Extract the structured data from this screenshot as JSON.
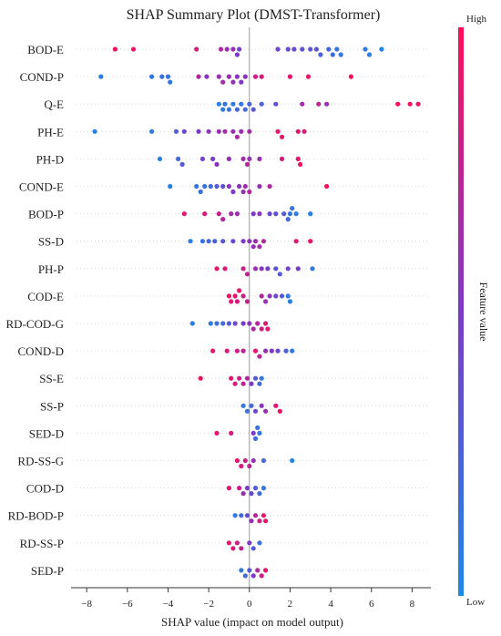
{
  "chart_data": {
    "type": "scatter",
    "title": "SHAP Summary Plot (DMST-Transformer)",
    "xlabel": "SHAP value (impact on model output)",
    "ylabel": "",
    "xlim": [
      -8.5,
      8.7
    ],
    "xticks": [
      -8,
      -6,
      -4,
      -2,
      0,
      2,
      4,
      6,
      8
    ],
    "xtick_labels": [
      "−8",
      "−6",
      "−4",
      "−2",
      "0",
      "2",
      "4",
      "6",
      "8"
    ],
    "grid": true,
    "colorbar": {
      "label": "Feature value",
      "high_label": "High",
      "low_label": "Low",
      "low_color": "#1e88e5",
      "high_color": "#ff0d57"
    },
    "features": [
      {
        "name": "BOD-E",
        "points": [
          {
            "x": -6.6,
            "v": 0.95
          },
          {
            "x": -5.7,
            "v": 0.92
          },
          {
            "x": -2.6,
            "v": 0.82
          },
          {
            "x": -1.4,
            "v": 0.7
          },
          {
            "x": -1.1,
            "v": 0.62
          },
          {
            "x": -0.8,
            "v": 0.6
          },
          {
            "x": -0.6,
            "v": 0.5
          },
          {
            "x": -0.5,
            "v": 0.45
          },
          {
            "x": 1.4,
            "v": 0.42
          },
          {
            "x": 1.9,
            "v": 0.38
          },
          {
            "x": 2.2,
            "v": 0.4
          },
          {
            "x": 2.6,
            "v": 0.35
          },
          {
            "x": 3.0,
            "v": 0.32
          },
          {
            "x": 3.3,
            "v": 0.3
          },
          {
            "x": 3.5,
            "v": 0.25
          },
          {
            "x": 3.9,
            "v": 0.2
          },
          {
            "x": 4.1,
            "v": 0.15
          },
          {
            "x": 4.3,
            "v": 0.12
          },
          {
            "x": 4.5,
            "v": 0.1
          },
          {
            "x": 5.7,
            "v": 0.08
          },
          {
            "x": 5.9,
            "v": 0.05
          },
          {
            "x": 6.5,
            "v": 0.04
          }
        ]
      },
      {
        "name": "COND-P",
        "points": [
          {
            "x": -7.3,
            "v": 0.05
          },
          {
            "x": -4.8,
            "v": 0.1
          },
          {
            "x": -4.3,
            "v": 0.15
          },
          {
            "x": -4.0,
            "v": 0.12
          },
          {
            "x": -3.9,
            "v": 0.1
          },
          {
            "x": -2.5,
            "v": 0.7
          },
          {
            "x": -2.1,
            "v": 0.55
          },
          {
            "x": -1.5,
            "v": 0.6
          },
          {
            "x": -1.3,
            "v": 0.65
          },
          {
            "x": -1.0,
            "v": 0.62
          },
          {
            "x": -0.8,
            "v": 0.6
          },
          {
            "x": -0.6,
            "v": 0.55
          },
          {
            "x": -0.4,
            "v": 0.5
          },
          {
            "x": -0.2,
            "v": 0.55
          },
          {
            "x": 0.3,
            "v": 0.8
          },
          {
            "x": 0.6,
            "v": 0.85
          },
          {
            "x": 2.0,
            "v": 0.9
          },
          {
            "x": 2.9,
            "v": 0.92
          },
          {
            "x": 5.0,
            "v": 0.97
          }
        ]
      },
      {
        "name": "Q-E",
        "points": [
          {
            "x": -1.5,
            "v": 0.05
          },
          {
            "x": -1.3,
            "v": 0.1
          },
          {
            "x": -1.2,
            "v": 0.12
          },
          {
            "x": -1.0,
            "v": 0.15
          },
          {
            "x": -0.8,
            "v": 0.1
          },
          {
            "x": -0.6,
            "v": 0.2
          },
          {
            "x": -0.4,
            "v": 0.15
          },
          {
            "x": -0.2,
            "v": 0.2
          },
          {
            "x": 0.0,
            "v": 0.25
          },
          {
            "x": 0.2,
            "v": 0.3
          },
          {
            "x": 0.6,
            "v": 0.25
          },
          {
            "x": 1.3,
            "v": 0.35
          },
          {
            "x": 2.6,
            "v": 0.65
          },
          {
            "x": 3.4,
            "v": 0.75
          },
          {
            "x": 3.8,
            "v": 0.6
          },
          {
            "x": 7.3,
            "v": 0.97
          },
          {
            "x": 7.9,
            "v": 0.96
          },
          {
            "x": 8.3,
            "v": 0.95
          }
        ]
      },
      {
        "name": "PH-E",
        "points": [
          {
            "x": -7.6,
            "v": 0.05
          },
          {
            "x": -4.8,
            "v": 0.1
          },
          {
            "x": -3.6,
            "v": 0.3
          },
          {
            "x": -3.2,
            "v": 0.4
          },
          {
            "x": -2.5,
            "v": 0.5
          },
          {
            "x": -2.0,
            "v": 0.55
          },
          {
            "x": -1.5,
            "v": 0.6
          },
          {
            "x": -1.2,
            "v": 0.65
          },
          {
            "x": -0.8,
            "v": 0.6
          },
          {
            "x": -0.6,
            "v": 0.7
          },
          {
            "x": -0.4,
            "v": 0.6
          },
          {
            "x": 0.0,
            "v": 0.65
          },
          {
            "x": 1.4,
            "v": 0.9
          },
          {
            "x": 1.6,
            "v": 0.92
          },
          {
            "x": 2.4,
            "v": 0.9
          },
          {
            "x": 2.7,
            "v": 0.85
          }
        ]
      },
      {
        "name": "PH-D",
        "points": [
          {
            "x": -4.4,
            "v": 0.05
          },
          {
            "x": -3.5,
            "v": 0.2
          },
          {
            "x": -3.3,
            "v": 0.3
          },
          {
            "x": -2.3,
            "v": 0.45
          },
          {
            "x": -1.8,
            "v": 0.5
          },
          {
            "x": -1.6,
            "v": 0.55
          },
          {
            "x": -1.0,
            "v": 0.6
          },
          {
            "x": -0.3,
            "v": 0.65
          },
          {
            "x": -0.1,
            "v": 0.7
          },
          {
            "x": 0.0,
            "v": 0.6
          },
          {
            "x": 0.5,
            "v": 0.6
          },
          {
            "x": 1.6,
            "v": 0.85
          },
          {
            "x": 2.4,
            "v": 0.9
          },
          {
            "x": 2.5,
            "v": 0.95
          }
        ]
      },
      {
        "name": "COND-E",
        "points": [
          {
            "x": -3.9,
            "v": 0.05
          },
          {
            "x": -2.6,
            "v": 0.1
          },
          {
            "x": -2.4,
            "v": 0.15
          },
          {
            "x": -2.2,
            "v": 0.12
          },
          {
            "x": -1.9,
            "v": 0.2
          },
          {
            "x": -1.6,
            "v": 0.3
          },
          {
            "x": -1.3,
            "v": 0.35
          },
          {
            "x": -1.0,
            "v": 0.55
          },
          {
            "x": -0.8,
            "v": 0.5
          },
          {
            "x": -0.5,
            "v": 0.55
          },
          {
            "x": -0.3,
            "v": 0.6
          },
          {
            "x": -0.2,
            "v": 0.65
          },
          {
            "x": 0.0,
            "v": 0.7
          },
          {
            "x": 0.5,
            "v": 0.6
          },
          {
            "x": 1.0,
            "v": 0.7
          },
          {
            "x": 3.8,
            "v": 0.95
          }
        ]
      },
      {
        "name": "BOD-P",
        "points": [
          {
            "x": -3.2,
            "v": 0.9
          },
          {
            "x": -2.2,
            "v": 0.85
          },
          {
            "x": -1.5,
            "v": 0.75
          },
          {
            "x": -1.3,
            "v": 0.7
          },
          {
            "x": -0.9,
            "v": 0.65
          },
          {
            "x": -0.6,
            "v": 0.62
          },
          {
            "x": 0.2,
            "v": 0.5
          },
          {
            "x": 0.5,
            "v": 0.55
          },
          {
            "x": 1.0,
            "v": 0.4
          },
          {
            "x": 1.3,
            "v": 0.35
          },
          {
            "x": 1.7,
            "v": 0.3
          },
          {
            "x": 1.9,
            "v": 0.2
          },
          {
            "x": 2.0,
            "v": 0.15
          },
          {
            "x": 2.1,
            "v": 0.12
          },
          {
            "x": 2.3,
            "v": 0.1
          },
          {
            "x": 3.0,
            "v": 0.08
          }
        ]
      },
      {
        "name": "SS-D",
        "points": [
          {
            "x": -2.9,
            "v": 0.05
          },
          {
            "x": -2.3,
            "v": 0.15
          },
          {
            "x": -2.0,
            "v": 0.2
          },
          {
            "x": -1.7,
            "v": 0.25
          },
          {
            "x": -1.3,
            "v": 0.3
          },
          {
            "x": -0.8,
            "v": 0.4
          },
          {
            "x": -0.3,
            "v": 0.5
          },
          {
            "x": 0.0,
            "v": 0.55
          },
          {
            "x": 0.2,
            "v": 0.6
          },
          {
            "x": 0.3,
            "v": 0.62
          },
          {
            "x": 0.5,
            "v": 0.65
          },
          {
            "x": 0.7,
            "v": 0.7
          },
          {
            "x": 2.3,
            "v": 0.9
          },
          {
            "x": 3.0,
            "v": 0.92
          }
        ]
      },
      {
        "name": "PH-P",
        "points": [
          {
            "x": -1.6,
            "v": 0.9
          },
          {
            "x": -1.2,
            "v": 0.85
          },
          {
            "x": -0.3,
            "v": 0.8
          },
          {
            "x": -0.1,
            "v": 0.75
          },
          {
            "x": 0.3,
            "v": 0.6
          },
          {
            "x": 0.6,
            "v": 0.55
          },
          {
            "x": 0.9,
            "v": 0.5
          },
          {
            "x": 1.3,
            "v": 0.35
          },
          {
            "x": 1.5,
            "v": 0.3
          },
          {
            "x": 1.9,
            "v": 0.45
          },
          {
            "x": 2.4,
            "v": 0.5
          },
          {
            "x": 3.1,
            "v": 0.1
          }
        ]
      },
      {
        "name": "COD-E",
        "points": [
          {
            "x": -1.0,
            "v": 0.95
          },
          {
            "x": -0.9,
            "v": 0.9
          },
          {
            "x": -0.7,
            "v": 0.92
          },
          {
            "x": -0.6,
            "v": 0.85
          },
          {
            "x": -0.5,
            "v": 0.9
          },
          {
            "x": -0.3,
            "v": 0.8
          },
          {
            "x": -0.1,
            "v": 0.75
          },
          {
            "x": 0.6,
            "v": 0.7
          },
          {
            "x": 0.8,
            "v": 0.6
          },
          {
            "x": 1.0,
            "v": 0.55
          },
          {
            "x": 1.3,
            "v": 0.4
          },
          {
            "x": 1.6,
            "v": 0.3
          },
          {
            "x": 1.9,
            "v": 0.1
          },
          {
            "x": 2.0,
            "v": 0.05
          }
        ]
      },
      {
        "name": "RD-COD-G",
        "points": [
          {
            "x": -2.8,
            "v": 0.05
          },
          {
            "x": -1.9,
            "v": 0.1
          },
          {
            "x": -1.6,
            "v": 0.15
          },
          {
            "x": -1.3,
            "v": 0.2
          },
          {
            "x": -1.0,
            "v": 0.3
          },
          {
            "x": -0.7,
            "v": 0.4
          },
          {
            "x": -0.3,
            "v": 0.5
          },
          {
            "x": 0.0,
            "v": 0.55
          },
          {
            "x": 0.2,
            "v": 0.65
          },
          {
            "x": 0.4,
            "v": 0.7
          },
          {
            "x": 0.6,
            "v": 0.8
          },
          {
            "x": 0.8,
            "v": 0.85
          },
          {
            "x": 0.9,
            "v": 0.9
          }
        ]
      },
      {
        "name": "COND-D",
        "points": [
          {
            "x": -1.8,
            "v": 0.9
          },
          {
            "x": -1.1,
            "v": 0.85
          },
          {
            "x": -0.6,
            "v": 0.8
          },
          {
            "x": -0.3,
            "v": 0.75
          },
          {
            "x": 0.3,
            "v": 0.9
          },
          {
            "x": 0.5,
            "v": 0.75
          },
          {
            "x": 0.8,
            "v": 0.6
          },
          {
            "x": 1.1,
            "v": 0.5
          },
          {
            "x": 1.4,
            "v": 0.4
          },
          {
            "x": 1.8,
            "v": 0.25
          },
          {
            "x": 2.1,
            "v": 0.1
          }
        ]
      },
      {
        "name": "SS-E",
        "points": [
          {
            "x": -2.4,
            "v": 0.95
          },
          {
            "x": -0.9,
            "v": 0.9
          },
          {
            "x": -0.7,
            "v": 0.85
          },
          {
            "x": -0.5,
            "v": 0.8
          },
          {
            "x": -0.3,
            "v": 0.75
          },
          {
            "x": -0.1,
            "v": 0.7
          },
          {
            "x": 0.1,
            "v": 0.5
          },
          {
            "x": 0.3,
            "v": 0.3
          },
          {
            "x": 0.5,
            "v": 0.2
          },
          {
            "x": 0.6,
            "v": 0.1
          }
        ]
      },
      {
        "name": "SS-P",
        "points": [
          {
            "x": -0.3,
            "v": 0.1
          },
          {
            "x": -0.1,
            "v": 0.15
          },
          {
            "x": 0.1,
            "v": 0.2
          },
          {
            "x": 0.3,
            "v": 0.4
          },
          {
            "x": 0.6,
            "v": 0.55
          },
          {
            "x": 0.8,
            "v": 0.6
          },
          {
            "x": 1.3,
            "v": 0.9
          },
          {
            "x": 1.5,
            "v": 0.95
          }
        ]
      },
      {
        "name": "SED-D",
        "points": [
          {
            "x": -1.6,
            "v": 0.9
          },
          {
            "x": -0.9,
            "v": 0.85
          },
          {
            "x": 0.2,
            "v": 0.5
          },
          {
            "x": 0.3,
            "v": 0.2
          },
          {
            "x": 0.4,
            "v": 0.15
          },
          {
            "x": 0.5,
            "v": 0.1
          }
        ]
      },
      {
        "name": "RD-SS-G",
        "points": [
          {
            "x": -0.6,
            "v": 0.9
          },
          {
            "x": -0.4,
            "v": 0.85
          },
          {
            "x": -0.2,
            "v": 0.8
          },
          {
            "x": 0.0,
            "v": 0.75
          },
          {
            "x": 0.2,
            "v": 0.6
          },
          {
            "x": 0.7,
            "v": 0.2
          },
          {
            "x": 2.1,
            "v": 0.05
          }
        ]
      },
      {
        "name": "COD-D",
        "points": [
          {
            "x": -1.0,
            "v": 0.9
          },
          {
            "x": -0.5,
            "v": 0.8
          },
          {
            "x": -0.3,
            "v": 0.6
          },
          {
            "x": -0.1,
            "v": 0.5
          },
          {
            "x": 0.1,
            "v": 0.4
          },
          {
            "x": 0.3,
            "v": 0.3
          },
          {
            "x": 0.5,
            "v": 0.2
          },
          {
            "x": 0.7,
            "v": 0.1
          }
        ]
      },
      {
        "name": "RD-BOD-P",
        "points": [
          {
            "x": -0.7,
            "v": 0.1
          },
          {
            "x": -0.4,
            "v": 0.2
          },
          {
            "x": -0.1,
            "v": 0.4
          },
          {
            "x": 0.1,
            "v": 0.6
          },
          {
            "x": 0.3,
            "v": 0.7
          },
          {
            "x": 0.5,
            "v": 0.8
          },
          {
            "x": 0.7,
            "v": 0.9
          },
          {
            "x": 0.8,
            "v": 0.92
          }
        ]
      },
      {
        "name": "RD-SS-P",
        "points": [
          {
            "x": -1.0,
            "v": 0.9
          },
          {
            "x": -0.8,
            "v": 0.85
          },
          {
            "x": -0.6,
            "v": 0.8
          },
          {
            "x": -0.4,
            "v": 0.75
          },
          {
            "x": 0.0,
            "v": 0.5
          },
          {
            "x": 0.2,
            "v": 0.3
          },
          {
            "x": 0.5,
            "v": 0.15
          }
        ]
      },
      {
        "name": "SED-P",
        "points": [
          {
            "x": -0.4,
            "v": 0.1
          },
          {
            "x": -0.2,
            "v": 0.2
          },
          {
            "x": 0.0,
            "v": 0.3
          },
          {
            "x": 0.2,
            "v": 0.5
          },
          {
            "x": 0.4,
            "v": 0.7
          },
          {
            "x": 0.6,
            "v": 0.8
          },
          {
            "x": 0.8,
            "v": 0.9
          }
        ]
      }
    ]
  }
}
